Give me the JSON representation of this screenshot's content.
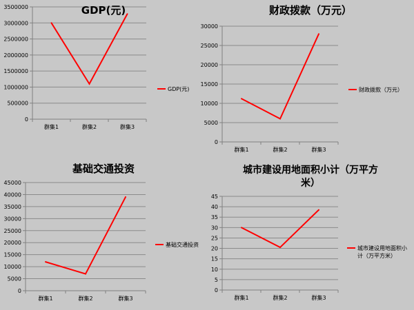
{
  "chart_data": [
    {
      "type": "line",
      "title": "GDP(元)",
      "categories": [
        "群集1",
        "群集2",
        "群集3"
      ],
      "series": [
        {
          "name": "GDP(元)",
          "values": [
            3000000,
            1100000,
            3280000
          ]
        }
      ],
      "ylim": [
        0,
        3500000
      ],
      "yticks": [
        0,
        500000,
        1000000,
        1500000,
        2000000,
        2500000,
        3000000,
        3500000
      ],
      "grid": true,
      "legend": "right",
      "color": "#ff0000"
    },
    {
      "type": "line",
      "title": "财政拨款（万元）",
      "categories": [
        "群集1",
        "群集2",
        "群集3"
      ],
      "series": [
        {
          "name": "财政拨款（万元）",
          "values": [
            11200,
            6000,
            28000
          ]
        }
      ],
      "ylim": [
        0,
        30000
      ],
      "yticks": [
        0,
        5000,
        10000,
        15000,
        20000,
        25000,
        30000
      ],
      "grid": true,
      "legend": "right",
      "color": "#ff0000"
    },
    {
      "type": "line",
      "title": "基础交通投资",
      "categories": [
        "群集1",
        "群集2",
        "群集3"
      ],
      "series": [
        {
          "name": "基础交通投资",
          "values": [
            12000,
            7000,
            39000
          ]
        }
      ],
      "ylim": [
        0,
        45000
      ],
      "yticks": [
        0,
        5000,
        10000,
        15000,
        20000,
        25000,
        30000,
        35000,
        40000,
        45000
      ],
      "grid": true,
      "legend": "right",
      "color": "#ff0000"
    },
    {
      "type": "line",
      "title": "城市建设用地面积小计（万平方米）",
      "title_lines": [
        "城市建设用地面积小计（万平方",
        "米）"
      ],
      "categories": [
        "群集1",
        "群集2",
        "群集3"
      ],
      "series": [
        {
          "name": "城市建设用地面积小计（万平方米）",
          "values": [
            30,
            20.5,
            38.5
          ]
        }
      ],
      "legend_lines": [
        "城市建设用地面积小",
        "计（万平方米）"
      ],
      "ylim": [
        0,
        45
      ],
      "yticks": [
        0,
        5,
        10,
        15,
        20,
        25,
        30,
        35,
        40,
        45
      ],
      "grid": true,
      "legend": "right",
      "color": "#ff0000"
    }
  ]
}
